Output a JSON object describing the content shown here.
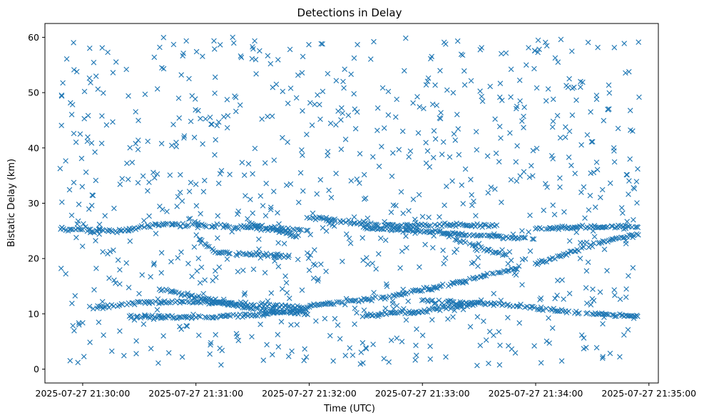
{
  "chart_data": {
    "type": "scatter",
    "title": "Detections in Delay",
    "xlabel": "Time (UTC)",
    "ylabel": "Bistatic Delay (km)",
    "marker": "x",
    "color": "#1f77b4",
    "grid": false,
    "legend": "none",
    "x_unit": "datetime",
    "xlim": [
      "2025-07-27 21:29:40",
      "2025-07-27 21:35:05"
    ],
    "ylim": [
      -2.5,
      62.5
    ],
    "x_ticks": [
      "2025-07-27 21:30:00",
      "2025-07-27 21:31:00",
      "2025-07-27 21:32:00",
      "2025-07-27 21:33:00",
      "2025-07-27 21:34:00",
      "2025-07-27 21:35:00"
    ],
    "y_ticks": [
      0,
      10,
      20,
      30,
      40,
      50,
      60
    ],
    "time_span": [
      "2025-07-27 21:29:48",
      "2025-07-27 21:34:55"
    ],
    "tracks": [
      {
        "points": [
          [
            "2025-07-27 21:29:48",
            25.3
          ],
          [
            "2025-07-27 21:30:20",
            25.0
          ],
          [
            "2025-07-27 21:30:40",
            26.2
          ],
          [
            "2025-07-27 21:31:00",
            26.0
          ],
          [
            "2025-07-27 21:31:40",
            25.5
          ],
          [
            "2025-07-27 21:32:00",
            25.0
          ]
        ]
      },
      {
        "points": [
          [
            "2025-07-27 21:31:00",
            24.2
          ],
          [
            "2025-07-27 21:31:10",
            21.0
          ],
          [
            "2025-07-27 21:31:50",
            20.5
          ]
        ]
      },
      {
        "points": [
          [
            "2025-07-27 21:31:28",
            26.3
          ],
          [
            "2025-07-27 21:31:55",
            24.0
          ]
        ]
      },
      {
        "points": [
          [
            "2025-07-27 21:31:58",
            27.5
          ],
          [
            "2025-07-27 21:32:40",
            26.0
          ],
          [
            "2025-07-27 21:33:20",
            26.0
          ],
          [
            "2025-07-27 21:33:40",
            26.0
          ]
        ]
      },
      {
        "points": [
          [
            "2025-07-27 21:32:30",
            25.5
          ],
          [
            "2025-07-27 21:33:40",
            24.0
          ],
          [
            "2025-07-27 21:34:00",
            23.5
          ]
        ]
      },
      {
        "points": [
          [
            "2025-07-27 21:33:10",
            24.5
          ],
          [
            "2025-07-27 21:33:30",
            22.0
          ],
          [
            "2025-07-27 21:33:45",
            20.5
          ]
        ]
      },
      {
        "points": [
          [
            "2025-07-27 21:34:00",
            19.0
          ],
          [
            "2025-07-27 21:34:30",
            22.5
          ],
          [
            "2025-07-27 21:34:55",
            24.5
          ]
        ]
      },
      {
        "points": [
          [
            "2025-07-27 21:34:00",
            25.5
          ],
          [
            "2025-07-27 21:34:55",
            25.8
          ]
        ]
      },
      {
        "points": [
          [
            "2025-07-27 21:30:05",
            11.0
          ],
          [
            "2025-07-27 21:30:30",
            12.0
          ],
          [
            "2025-07-27 21:31:00",
            12.2
          ],
          [
            "2025-07-27 21:31:40",
            11.5
          ],
          [
            "2025-07-27 21:32:00",
            11.0
          ]
        ]
      },
      {
        "points": [
          [
            "2025-07-27 21:30:40",
            14.5
          ],
          [
            "2025-07-27 21:31:15",
            12.0
          ],
          [
            "2025-07-27 21:31:40",
            10.5
          ],
          [
            "2025-07-27 21:32:00",
            10.0
          ]
        ]
      },
      {
        "points": [
          [
            "2025-07-27 21:30:25",
            9.5
          ],
          [
            "2025-07-27 21:31:00",
            9.3
          ],
          [
            "2025-07-27 21:31:40",
            10.0
          ],
          [
            "2025-07-27 21:32:00",
            11.0
          ]
        ]
      },
      {
        "points": [
          [
            "2025-07-27 21:32:00",
            11.5
          ],
          [
            "2025-07-27 21:32:40",
            13.0
          ],
          [
            "2025-07-27 21:33:10",
            15.0
          ],
          [
            "2025-07-27 21:33:40",
            17.5
          ],
          [
            "2025-07-27 21:33:52",
            18.5
          ]
        ]
      },
      {
        "points": [
          [
            "2025-07-27 21:32:30",
            9.8
          ],
          [
            "2025-07-27 21:33:00",
            10.5
          ],
          [
            "2025-07-27 21:33:30",
            12.0
          ]
        ]
      },
      {
        "points": [
          [
            "2025-07-27 21:33:00",
            12.3
          ],
          [
            "2025-07-27 21:33:40",
            11.8
          ],
          [
            "2025-07-27 21:34:00",
            11.0
          ],
          [
            "2025-07-27 21:34:30",
            10.0
          ],
          [
            "2025-07-27 21:34:55",
            9.5
          ]
        ]
      }
    ],
    "clutter_count": 900,
    "clutter_ylim": [
      0.5,
      60
    ]
  }
}
